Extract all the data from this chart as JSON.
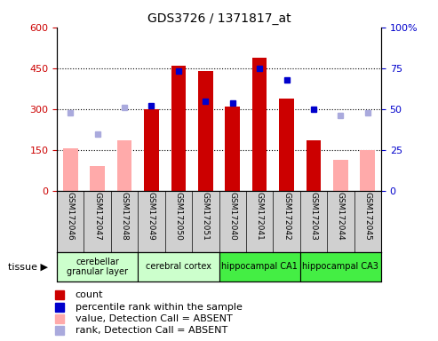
{
  "title": "GDS3726 / 1371817_at",
  "samples": [
    "GSM172046",
    "GSM172047",
    "GSM172048",
    "GSM172049",
    "GSM172050",
    "GSM172051",
    "GSM172040",
    "GSM172041",
    "GSM172042",
    "GSM172043",
    "GSM172044",
    "GSM172045"
  ],
  "count_present": [
    null,
    null,
    null,
    300,
    460,
    440,
    310,
    490,
    340,
    185,
    null,
    null
  ],
  "count_absent": [
    155,
    90,
    185,
    null,
    null,
    null,
    null,
    null,
    null,
    null,
    115,
    150
  ],
  "rank_present_pct": [
    null,
    null,
    null,
    52,
    73,
    55,
    54,
    75,
    68,
    50,
    null,
    null
  ],
  "rank_absent_pct": [
    48,
    35,
    51,
    null,
    null,
    null,
    null,
    null,
    null,
    null,
    46,
    48
  ],
  "tissue_groups": [
    {
      "label": "cerebellar\ngranular layer",
      "start": 0,
      "end": 3,
      "color": "#ccffcc"
    },
    {
      "label": "cerebral cortex",
      "start": 3,
      "end": 6,
      "color": "#ccffcc"
    },
    {
      "label": "hippocampal CA1",
      "start": 6,
      "end": 9,
      "color": "#44ee44"
    },
    {
      "label": "hippocampal CA3",
      "start": 9,
      "end": 12,
      "color": "#44ee44"
    }
  ],
  "ylim_left": [
    0,
    600
  ],
  "ylim_right": [
    0,
    100
  ],
  "yticks_left": [
    0,
    150,
    300,
    450,
    600
  ],
  "yticks_right": [
    0,
    25,
    50,
    75,
    100
  ],
  "count_color_present": "#cc0000",
  "count_color_absent": "#ffaaaa",
  "rank_color_present": "#0000cc",
  "rank_color_absent": "#aaaadd",
  "sample_bg_color": "#d0d0d0",
  "left_label_color": "#cc0000",
  "right_label_color": "#0000cc",
  "grid_yticks": [
    150,
    300,
    450
  ]
}
